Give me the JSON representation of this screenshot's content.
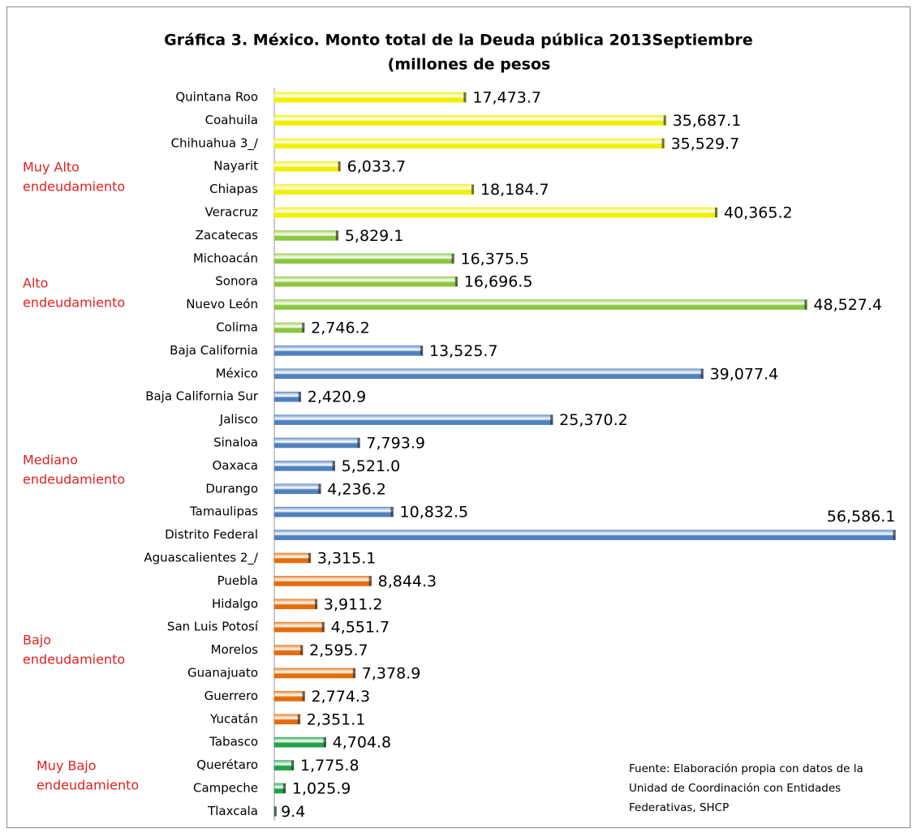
{
  "chart_data": {
    "type": "bar",
    "orientation": "horizontal",
    "title": [
      "Gráfica 3. México. Monto total de la Deuda pública 2013Septiembre",
      "(millones de pesos"
    ],
    "categories": [
      "Quintana Roo",
      "Coahuila",
      "Chihuahua 3_/",
      "Nayarit",
      "Chiapas",
      "Veracruz",
      "Zacatecas",
      "Michoacán",
      "Sonora",
      "Nuevo León",
      "Colima",
      "Baja California",
      "México",
      "Baja California Sur",
      "Jalisco",
      "Sinaloa",
      "Oaxaca",
      "Durango",
      "Tamaulipas",
      "Distrito Federal",
      "Aguascalientes 2_/",
      "Puebla",
      "Hidalgo",
      "San Luis Potosí",
      "Morelos",
      "Guanajuato",
      "Guerrero",
      "Yucatán",
      "Tabasco",
      "Querétaro",
      "Campeche",
      "Tlaxcala"
    ],
    "values": [
      17473.7,
      35687.1,
      35529.7,
      6033.7,
      18184.7,
      40365.2,
      5829.1,
      16375.5,
      16696.5,
      48527.4,
      2746.2,
      13525.7,
      39077.4,
      2420.9,
      25370.2,
      7793.9,
      5521.0,
      4236.2,
      10832.5,
      56586.1,
      3315.1,
      8844.3,
      3911.2,
      4551.7,
      2595.7,
      7378.9,
      2774.3,
      2351.1,
      4704.8,
      1775.8,
      1025.9,
      9.4
    ],
    "value_labels": [
      "17,473.7",
      "35,687.1",
      "35,529.7",
      "6,033.7",
      "18,184.7",
      "40,365.2",
      "5,829.1",
      "16,375.5",
      "16,696.5",
      "48,527.4",
      "2,746.2",
      "13,525.7",
      "39,077.4",
      "2,420.9",
      "25,370.2",
      "7,793.9",
      "5,521.0",
      "4,236.2",
      "10,832.5",
      "56,586.1",
      "3,315.1",
      "8,844.3",
      "3,911.2",
      "4,551.7",
      "2,595.7",
      "7,378.9",
      "2,774.3",
      "2,351.1",
      "4,704.8",
      "1,775.8",
      "1,025.9",
      "9.4"
    ],
    "colors": [
      "#f0f000",
      "#f0f000",
      "#f0f000",
      "#f0f000",
      "#f0f000",
      "#f0f000",
      "#8cc63f",
      "#8cc63f",
      "#8cc63f",
      "#8cc63f",
      "#8cc63f",
      "#4f81bd",
      "#4f81bd",
      "#4f81bd",
      "#4f81bd",
      "#4f81bd",
      "#4f81bd",
      "#4f81bd",
      "#4f81bd",
      "#4f81bd",
      "#e46c0a",
      "#e46c0a",
      "#e46c0a",
      "#e46c0a",
      "#e46c0a",
      "#e46c0a",
      "#e46c0a",
      "#e46c0a",
      "#1fa34a",
      "#1fa34a",
      "#1fa34a",
      "#1fa34a"
    ],
    "xlim": [
      0,
      57000
    ],
    "annotations": [
      [
        "Muy Alto",
        "endeudamiento"
      ],
      [
        "Alto",
        "endeudamiento"
      ],
      [
        "Mediano",
        "endeudamiento"
      ],
      [
        "Bajo",
        "endeudamiento"
      ],
      [
        "Muy Bajo",
        "endeudamiento"
      ]
    ],
    "source": [
      "Fuente: Elaboración propia con datos de la",
      "Unidad de Coordinación con Entidades",
      "Federativas, SHCP"
    ]
  }
}
